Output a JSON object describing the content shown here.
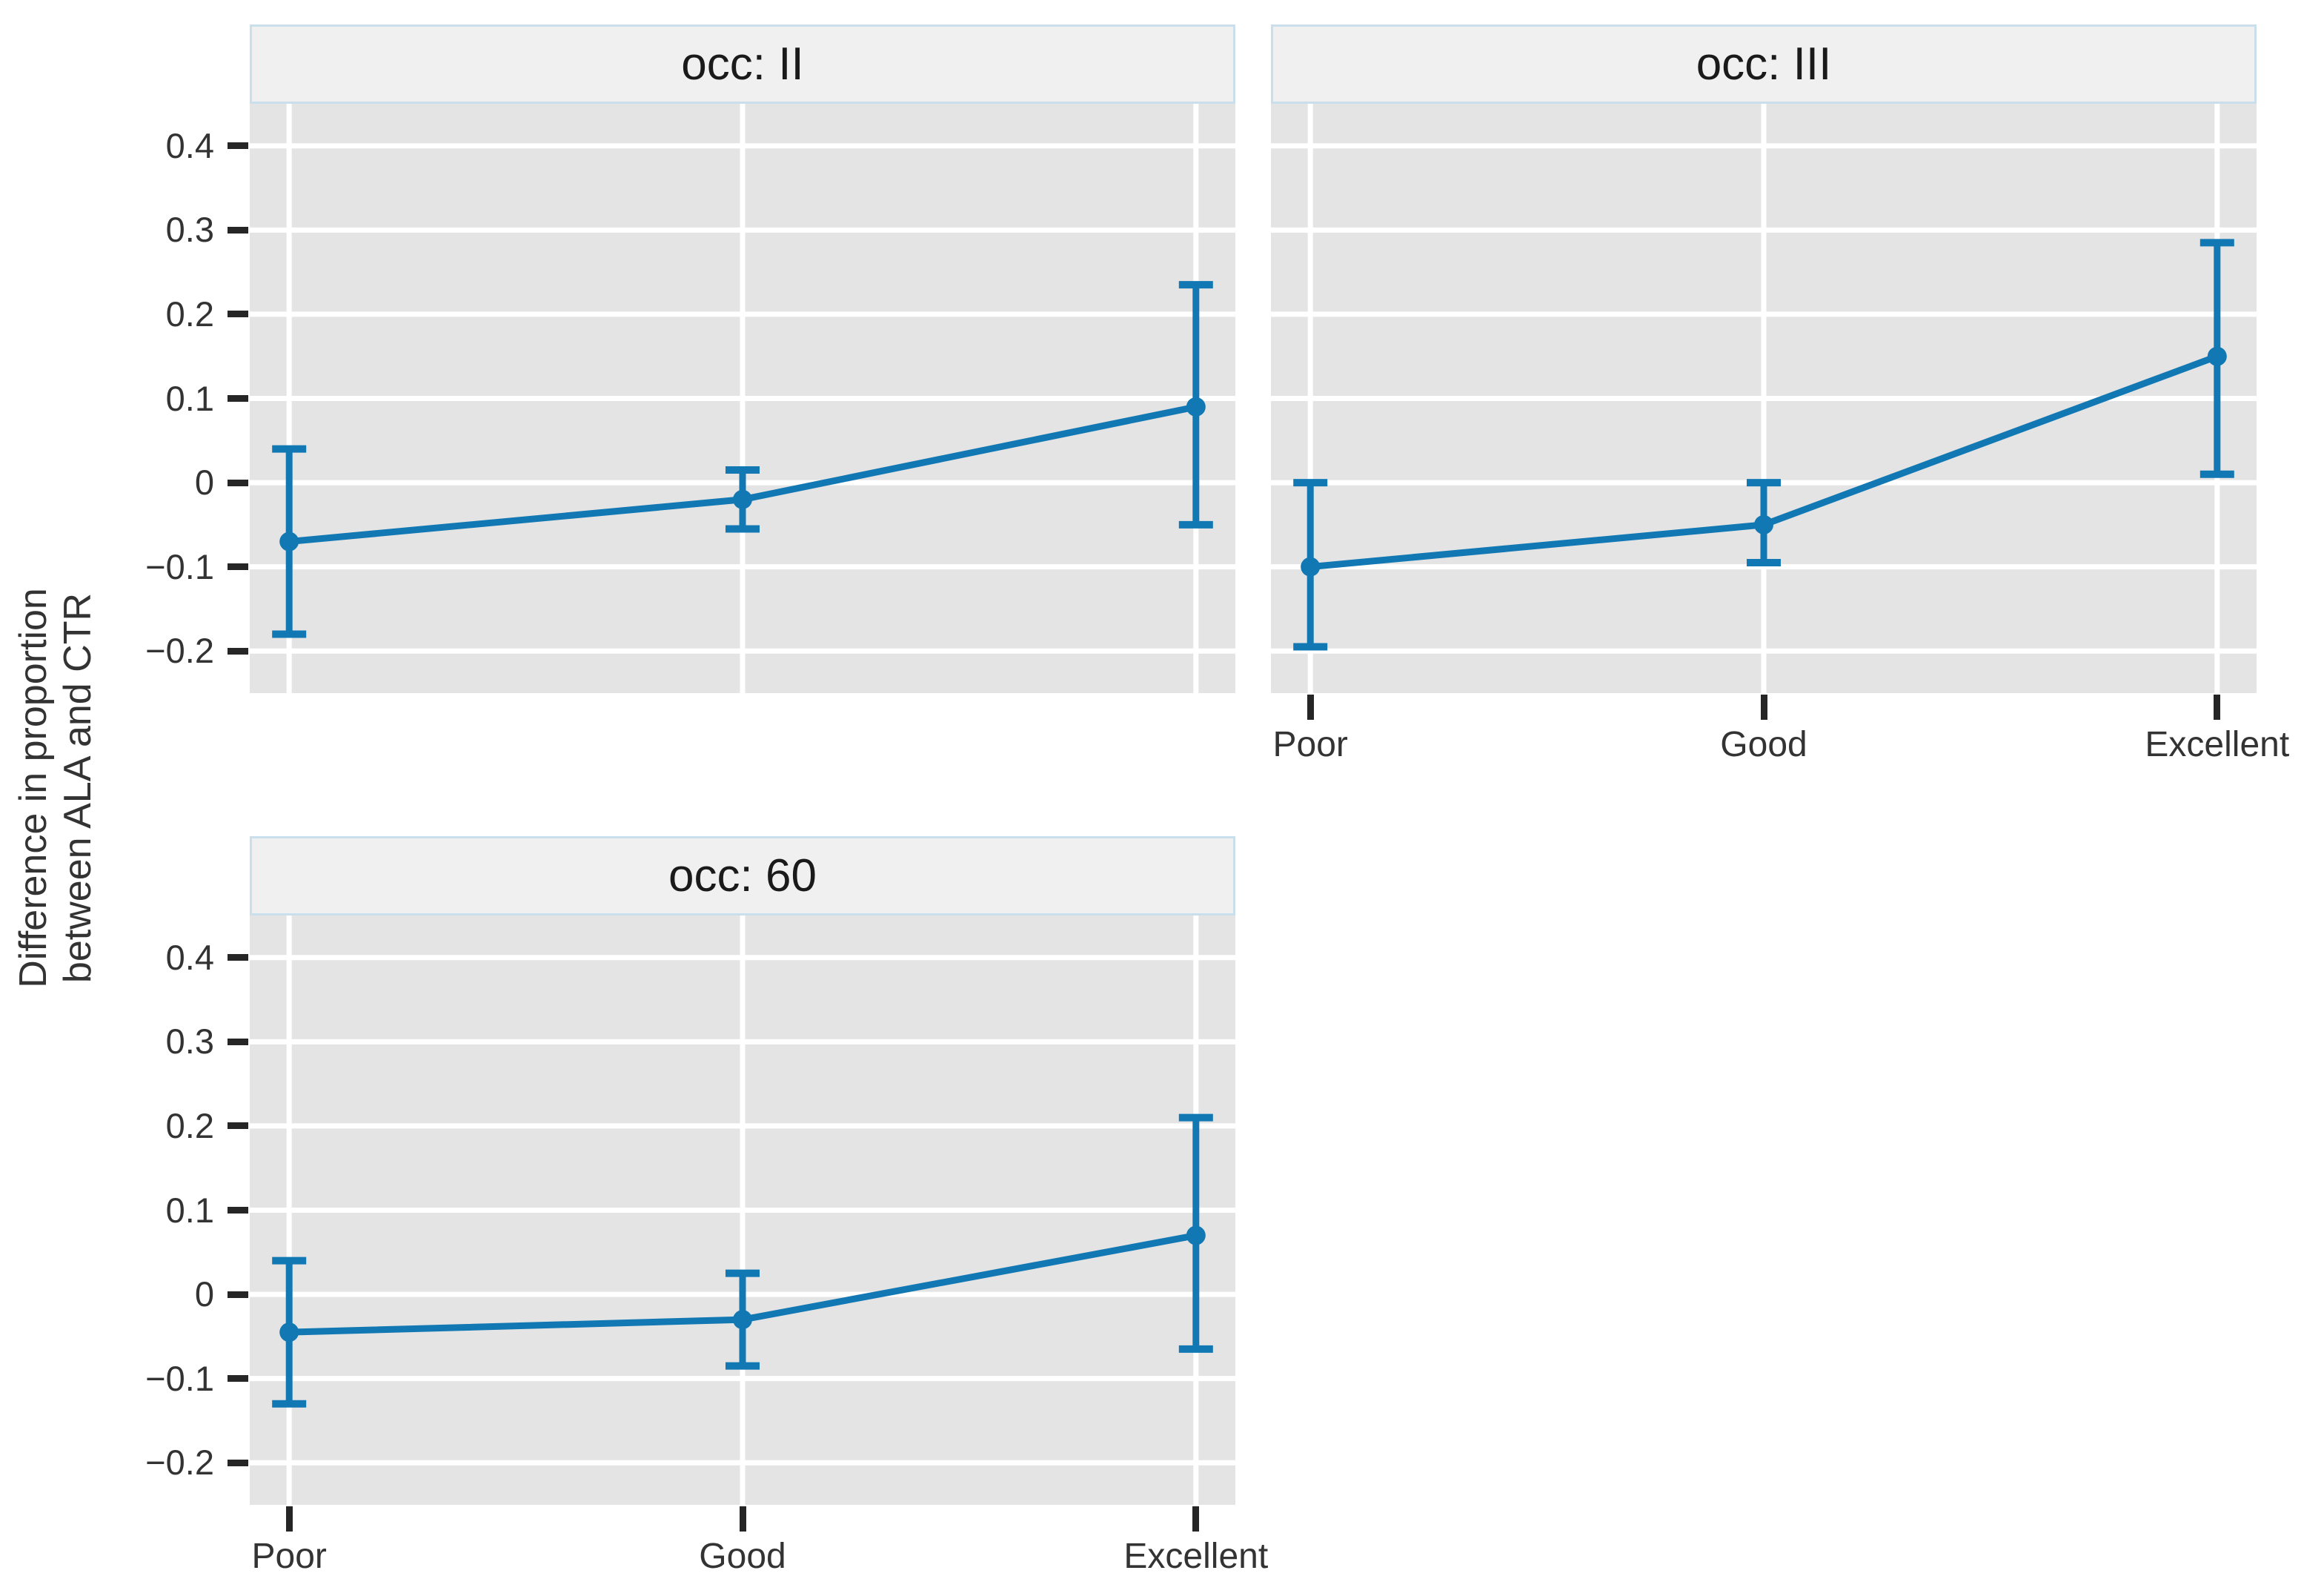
{
  "figure": {
    "background": "#ffffff",
    "accent_blue": "#1178b4",
    "panel_bg": "#e4e4e4",
    "gridline_color": "#ffffff",
    "strip_bg": "#f0f0f1",
    "strip_border": "#c9dfec",
    "tick_color": "#262626",
    "text_color": "#333333"
  },
  "chart_data": {
    "type": "line",
    "subtype": "faceted-pointrange-with-error-bars",
    "ylabel": "Difference in proportion\nbetween ALA and CTR",
    "categories": [
      "Poor",
      "Good",
      "Excellent"
    ],
    "y_ticks": [
      0.4,
      0.3,
      0.2,
      0.1,
      0,
      -0.1,
      -0.2
    ],
    "y_tick_labels": [
      "0.4",
      "0.3",
      "0.2",
      "0.1",
      "0",
      "−0.1",
      "−0.2"
    ],
    "ylim": [
      -0.25,
      0.45
    ],
    "grid": true,
    "legend": false,
    "facets": [
      {
        "title": "occ: II",
        "grid_col": 0,
        "grid_row": 0,
        "show_x_axis": false,
        "show_y_axis": true,
        "estimates": [
          -0.07,
          -0.02,
          0.09
        ],
        "ci_low": [
          -0.18,
          -0.055,
          -0.05
        ],
        "ci_high": [
          0.04,
          0.015,
          0.235
        ]
      },
      {
        "title": "occ: III",
        "grid_col": 1,
        "grid_row": 0,
        "show_x_axis": true,
        "show_y_axis": false,
        "estimates": [
          -0.1,
          -0.05,
          0.15
        ],
        "ci_low": [
          -0.195,
          -0.095,
          0.01
        ],
        "ci_high": [
          0.0,
          0.0,
          0.285
        ]
      },
      {
        "title": "occ: 60",
        "grid_col": 0,
        "grid_row": 1,
        "show_x_axis": true,
        "show_y_axis": true,
        "estimates": [
          -0.045,
          -0.03,
          0.07
        ],
        "ci_low": [
          -0.13,
          -0.085,
          -0.065
        ],
        "ci_high": [
          0.04,
          0.025,
          0.21
        ]
      }
    ]
  }
}
